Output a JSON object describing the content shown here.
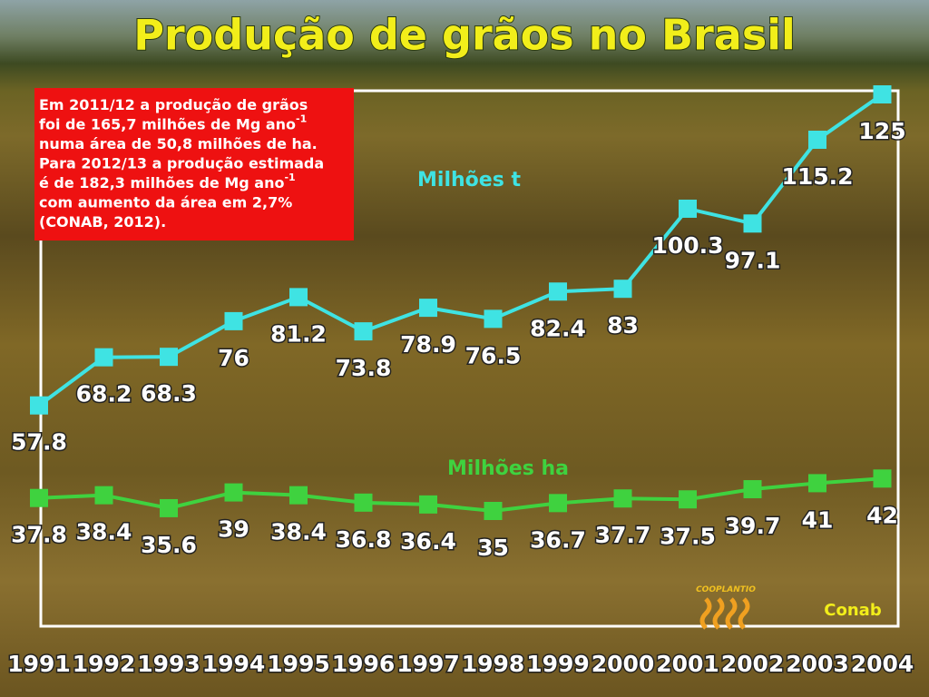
{
  "chart_data": {
    "type": "line",
    "title": "Produção de grãos no Brasil",
    "categories": [
      "1991",
      "1992",
      "1993",
      "1994",
      "1995",
      "1996",
      "1997",
      "1998",
      "1999",
      "2000",
      "2001",
      "2002",
      "2003",
      "2004"
    ],
    "series": [
      {
        "name": "Milhões t",
        "color": "#3fe3e3",
        "values": [
          57.8,
          68.2,
          68.3,
          76,
          81.2,
          73.8,
          78.9,
          76.5,
          82.4,
          83,
          100.3,
          97.1,
          115.2,
          125
        ]
      },
      {
        "name": "Milhões ha",
        "color": "#3fd23f",
        "values": [
          37.8,
          38.4,
          35.6,
          39,
          38.4,
          36.8,
          36.4,
          35,
          36.7,
          37.7,
          37.5,
          39.7,
          41,
          42
        ]
      }
    ],
    "annotation": [
      {
        "text": "Em 2011/12 a produção de  grãos"
      },
      {
        "text": "foi de 165,7  milhões de Mg ano",
        "sup": "-1"
      },
      {
        "text": "numa área de 50,8 milhões de ha."
      },
      {
        "text": "Para 2012/13 a produção estimada"
      },
      {
        "text": "é de 182,3 milhões de Mg ano",
        "sup": "-1"
      },
      {
        "text": " com aumento da  área em 2,7%"
      },
      {
        "text": "(CONAB, 2012)."
      }
    ],
    "logos": [
      "COOPLANTIO",
      "Conab"
    ]
  }
}
